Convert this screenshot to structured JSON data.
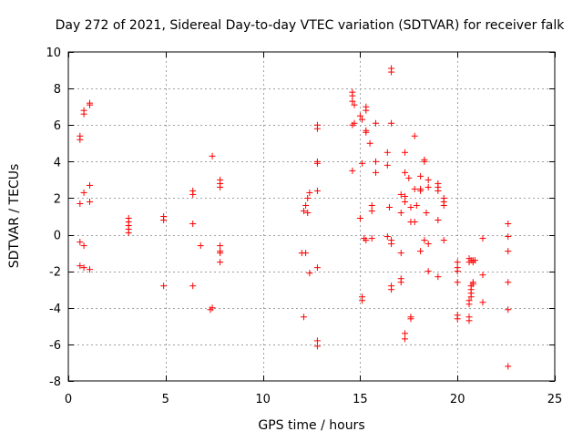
{
  "chart_data": {
    "type": "scatter",
    "title": "Day 272 of 2021, Sidereal Day-to-day VTEC variation (SDTVAR) for receiver falk",
    "xlabel": "GPS time / hours",
    "ylabel": "SDTVAR / TECUs",
    "xlim": [
      0,
      25
    ],
    "ylim": [
      -8,
      10
    ],
    "xticks": [
      0,
      5,
      10,
      15,
      20,
      25
    ],
    "yticks": [
      -8,
      -6,
      -4,
      -2,
      0,
      2,
      4,
      6,
      8,
      10
    ],
    "grid": true,
    "marker": "+",
    "color": "#ff0000",
    "series": [
      {
        "name": "SDTVAR",
        "points": [
          [
            0.6,
            5.4
          ],
          [
            0.6,
            5.2
          ],
          [
            0.8,
            6.8
          ],
          [
            0.8,
            6.6
          ],
          [
            1.1,
            7.2
          ],
          [
            1.1,
            7.1
          ],
          [
            0.6,
            1.7
          ],
          [
            0.8,
            2.3
          ],
          [
            1.1,
            2.7
          ],
          [
            1.1,
            1.8
          ],
          [
            0.6,
            -0.4
          ],
          [
            0.8,
            -0.6
          ],
          [
            0.6,
            -1.7
          ],
          [
            0.8,
            -1.8
          ],
          [
            1.1,
            -1.9
          ],
          [
            3.1,
            0.9
          ],
          [
            3.1,
            0.7
          ],
          [
            3.1,
            0.5
          ],
          [
            3.1,
            0.3
          ],
          [
            3.1,
            0.1
          ],
          [
            4.9,
            1.0
          ],
          [
            4.9,
            0.8
          ],
          [
            4.9,
            -2.8
          ],
          [
            6.4,
            2.4
          ],
          [
            6.4,
            2.2
          ],
          [
            6.4,
            0.6
          ],
          [
            6.4,
            -2.8
          ],
          [
            6.8,
            -0.6
          ],
          [
            7.4,
            4.3
          ],
          [
            7.4,
            -4.0
          ],
          [
            7.3,
            -4.1
          ],
          [
            7.8,
            3.0
          ],
          [
            7.8,
            2.8
          ],
          [
            7.8,
            2.6
          ],
          [
            7.8,
            -0.6
          ],
          [
            7.8,
            -0.9
          ],
          [
            7.8,
            -1.0
          ],
          [
            7.8,
            -1.5
          ],
          [
            12.0,
            -1.0
          ],
          [
            12.2,
            -1.0
          ],
          [
            12.1,
            1.3
          ],
          [
            12.2,
            1.6
          ],
          [
            12.3,
            1.2
          ],
          [
            12.3,
            2.0
          ],
          [
            12.4,
            2.3
          ],
          [
            12.4,
            -2.1
          ],
          [
            12.1,
            -4.5
          ],
          [
            12.8,
            6.0
          ],
          [
            12.8,
            5.8
          ],
          [
            12.8,
            4.0
          ],
          [
            12.8,
            3.9
          ],
          [
            12.8,
            2.4
          ],
          [
            12.8,
            -1.8
          ],
          [
            12.8,
            -5.8
          ],
          [
            12.8,
            -6.1
          ],
          [
            14.6,
            7.8
          ],
          [
            14.6,
            7.6
          ],
          [
            14.6,
            7.3
          ],
          [
            14.7,
            7.1
          ],
          [
            14.7,
            6.1
          ],
          [
            14.6,
            6.0
          ],
          [
            14.6,
            3.5
          ],
          [
            15.0,
            6.5
          ],
          [
            15.1,
            6.3
          ],
          [
            15.3,
            7.0
          ],
          [
            15.3,
            6.8
          ],
          [
            15.3,
            5.7
          ],
          [
            15.3,
            5.6
          ],
          [
            15.1,
            3.9
          ],
          [
            15.0,
            0.9
          ],
          [
            15.2,
            -0.2
          ],
          [
            15.3,
            -0.3
          ],
          [
            15.1,
            -3.4
          ],
          [
            15.1,
            -3.6
          ],
          [
            15.5,
            5.0
          ],
          [
            15.6,
            1.6
          ],
          [
            15.6,
            1.3
          ],
          [
            15.8,
            6.1
          ],
          [
            15.8,
            4.0
          ],
          [
            15.8,
            3.4
          ],
          [
            15.6,
            -0.2
          ],
          [
            16.4,
            4.5
          ],
          [
            16.4,
            3.8
          ],
          [
            16.5,
            1.5
          ],
          [
            16.4,
            -0.1
          ],
          [
            16.6,
            -0.3
          ],
          [
            16.6,
            -0.5
          ],
          [
            16.6,
            -2.8
          ],
          [
            16.6,
            -3.0
          ],
          [
            16.6,
            9.1
          ],
          [
            16.6,
            8.9
          ],
          [
            16.6,
            6.1
          ],
          [
            17.1,
            2.2
          ],
          [
            17.1,
            1.2
          ],
          [
            17.1,
            -1.0
          ],
          [
            17.1,
            -2.4
          ],
          [
            17.1,
            -2.6
          ],
          [
            17.3,
            4.5
          ],
          [
            17.3,
            3.4
          ],
          [
            17.3,
            2.1
          ],
          [
            17.3,
            1.8
          ],
          [
            17.3,
            -5.4
          ],
          [
            17.3,
            -5.7
          ],
          [
            17.5,
            3.1
          ],
          [
            17.6,
            1.5
          ],
          [
            17.6,
            0.7
          ],
          [
            17.6,
            -4.5
          ],
          [
            17.6,
            -4.6
          ],
          [
            17.8,
            5.4
          ],
          [
            17.8,
            2.5
          ],
          [
            17.9,
            1.6
          ],
          [
            17.8,
            0.7
          ],
          [
            18.1,
            3.2
          ],
          [
            18.1,
            2.4
          ],
          [
            18.1,
            2.5
          ],
          [
            18.1,
            -0.9
          ],
          [
            18.3,
            4.1
          ],
          [
            18.3,
            4.0
          ],
          [
            18.3,
            -0.3
          ],
          [
            18.4,
            1.2
          ],
          [
            18.5,
            3.0
          ],
          [
            18.5,
            2.6
          ],
          [
            18.5,
            -0.5
          ],
          [
            18.5,
            -2.0
          ],
          [
            19.0,
            2.8
          ],
          [
            19.0,
            2.6
          ],
          [
            19.0,
            2.4
          ],
          [
            19.0,
            0.8
          ],
          [
            19.0,
            -2.3
          ],
          [
            19.3,
            2.0
          ],
          [
            19.3,
            1.8
          ],
          [
            19.3,
            1.6
          ],
          [
            19.3,
            -0.3
          ],
          [
            20.0,
            -1.5
          ],
          [
            20.0,
            -1.8
          ],
          [
            20.0,
            -2.0
          ],
          [
            20.0,
            -2.6
          ],
          [
            20.0,
            -4.4
          ],
          [
            20.0,
            -4.6
          ],
          [
            20.6,
            -1.3
          ],
          [
            20.6,
            -1.5
          ],
          [
            20.7,
            -1.4
          ],
          [
            20.8,
            -1.4
          ],
          [
            20.8,
            -1.5
          ],
          [
            20.9,
            -1.4
          ],
          [
            20.8,
            -2.6
          ],
          [
            20.8,
            -2.7
          ],
          [
            20.7,
            -2.8
          ],
          [
            20.7,
            -3.0
          ],
          [
            20.7,
            -3.2
          ],
          [
            20.7,
            -3.4
          ],
          [
            20.6,
            -3.6
          ],
          [
            20.6,
            -3.8
          ],
          [
            20.6,
            -4.5
          ],
          [
            20.6,
            -4.7
          ],
          [
            21.3,
            -0.2
          ],
          [
            21.3,
            -2.2
          ],
          [
            21.3,
            -3.7
          ],
          [
            22.6,
            0.6
          ],
          [
            22.6,
            -0.1
          ],
          [
            22.6,
            -0.9
          ],
          [
            22.6,
            -2.6
          ],
          [
            22.6,
            -4.1
          ],
          [
            22.6,
            -7.2
          ]
        ]
      }
    ]
  }
}
